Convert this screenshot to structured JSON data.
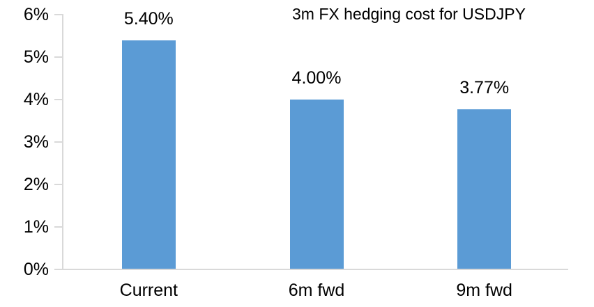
{
  "chart_data": {
    "type": "bar",
    "title": "3m FX hedging cost for USDJPY",
    "categories": [
      "Current",
      "6m fwd",
      "9m fwd"
    ],
    "values": [
      5.4,
      4.0,
      3.77
    ],
    "data_labels": [
      "5.40%",
      "4.00%",
      "3.77%"
    ],
    "y_tick_labels": [
      "0%",
      "1%",
      "2%",
      "3%",
      "4%",
      "5%",
      "6%"
    ],
    "y_tick_step": 1,
    "ylim": [
      0,
      6
    ],
    "xlabel": "",
    "ylabel": "",
    "grid": false,
    "legend": false,
    "colors": {
      "bar": "#5B9BD5",
      "axis": "#D9D9D9",
      "text": "#000000",
      "background": "#FFFFFF"
    }
  }
}
